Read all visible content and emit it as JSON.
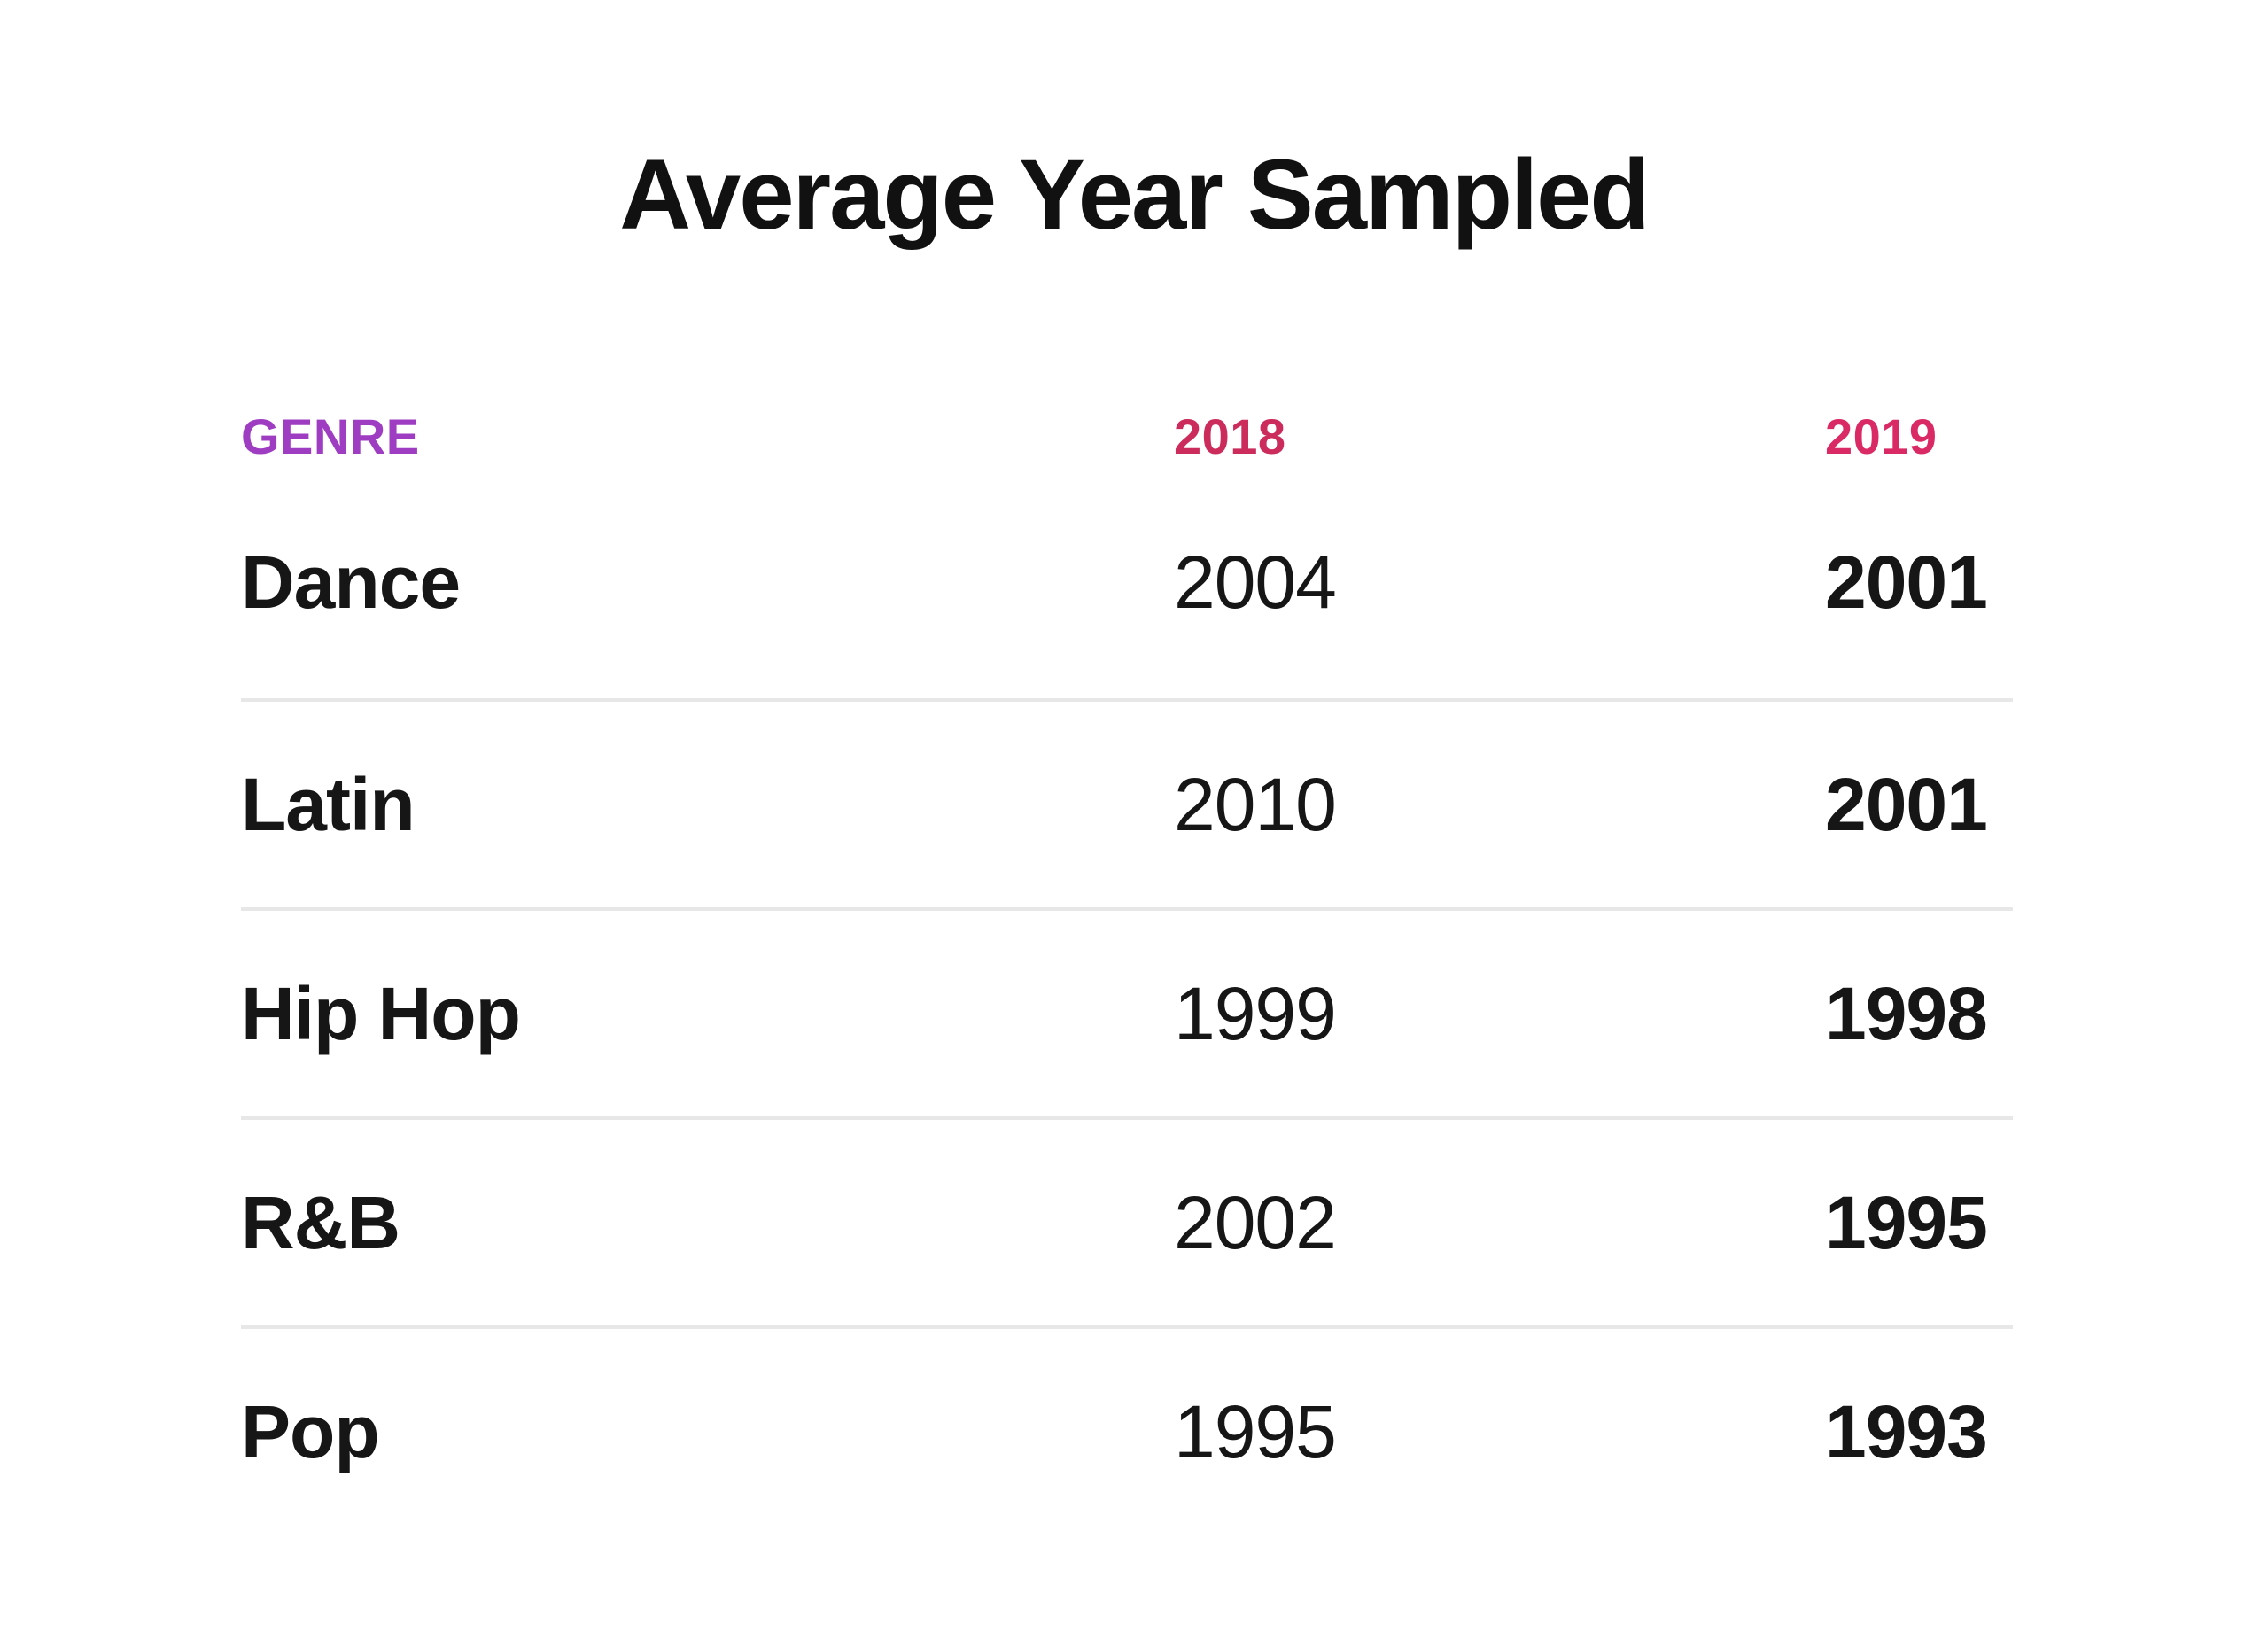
{
  "title": "Average Year Sampled",
  "colors": {
    "text": "#161616",
    "title": "#111111",
    "genre_header": "#9e3dc2",
    "col_2018_header": "#cb2c5c",
    "col_2019_header": "#da2a66",
    "divider": "#e7e7e7",
    "background": "#ffffff"
  },
  "table": {
    "columns": [
      {
        "key": "genre",
        "label": "GENRE",
        "color": "#9e3dc2"
      },
      {
        "key": "y2018",
        "label": "2018",
        "color": "#cb2c5c"
      },
      {
        "key": "y2019",
        "label": "2019",
        "color": "#da2a66"
      }
    ],
    "rows": [
      {
        "genre": "Dance",
        "y2018": "2004",
        "y2019": "2001"
      },
      {
        "genre": "Latin",
        "y2018": "2010",
        "y2019": "2001"
      },
      {
        "genre": "Hip Hop",
        "y2018": "1999",
        "y2019": "1998"
      },
      {
        "genre": "R&B",
        "y2018": "2002",
        "y2019": "1995"
      },
      {
        "genre": "Pop",
        "y2018": "1995",
        "y2019": "1993"
      }
    ]
  },
  "chart_data": {
    "type": "table",
    "title": "Average Year Sampled",
    "categories": [
      "Dance",
      "Latin",
      "Hip Hop",
      "R&B",
      "Pop"
    ],
    "series": [
      {
        "name": "2018",
        "values": [
          2004,
          2010,
          1999,
          2002,
          1995
        ]
      },
      {
        "name": "2019",
        "values": [
          2001,
          2001,
          1998,
          1995,
          1993
        ]
      }
    ],
    "column_headers": [
      "GENRE",
      "2018",
      "2019"
    ],
    "layout_hints": {
      "value_columns_left_aligned": true,
      "year_2019_column_bold": true,
      "row_dividers": true
    }
  }
}
